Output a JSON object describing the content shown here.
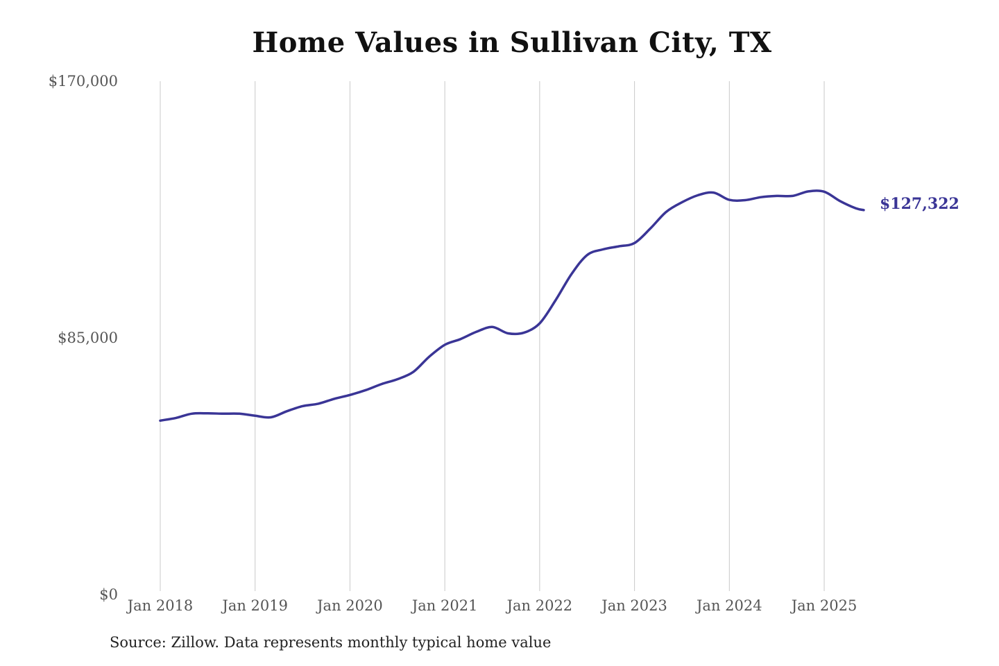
{
  "chart_data": {
    "type": "line",
    "title": "Home Values in Sullivan City, TX",
    "xlabel": "",
    "ylabel": "",
    "source_note": "Source: Zillow. Data represents monthly typical home value",
    "ylim": [
      0,
      170000
    ],
    "xlim": [
      "2018-01",
      "2025-06"
    ],
    "y_ticks": [
      {
        "value": 0,
        "label": "$0"
      },
      {
        "value": 85000,
        "label": "$85,000"
      },
      {
        "value": 170000,
        "label": "$170,000"
      }
    ],
    "x_ticks": [
      {
        "value": "2018-01",
        "label": "Jan 2018"
      },
      {
        "value": "2019-01",
        "label": "Jan 2019"
      },
      {
        "value": "2020-01",
        "label": "Jan 2020"
      },
      {
        "value": "2021-01",
        "label": "Jan 2021"
      },
      {
        "value": "2022-01",
        "label": "Jan 2022"
      },
      {
        "value": "2023-01",
        "label": "Jan 2023"
      },
      {
        "value": "2024-01",
        "label": "Jan 2024"
      },
      {
        "value": "2025-01",
        "label": "Jan 2025"
      }
    ],
    "grid": {
      "vertical": true,
      "horizontal": false
    },
    "colors": {
      "line": "#3a3596",
      "grid": "#c8c8c8"
    },
    "end_label": "$127,322",
    "series": [
      {
        "x": [
          "2018-01",
          "2018-03",
          "2018-05",
          "2018-07",
          "2018-09",
          "2018-11",
          "2019-01",
          "2019-03",
          "2019-05",
          "2019-07",
          "2019-09",
          "2019-11",
          "2020-01",
          "2020-03",
          "2020-05",
          "2020-07",
          "2020-09",
          "2020-11",
          "2021-01",
          "2021-03",
          "2021-05",
          "2021-07",
          "2021-09",
          "2021-11",
          "2022-01",
          "2022-03",
          "2022-05",
          "2022-07",
          "2022-09",
          "2022-11",
          "2023-01",
          "2023-03",
          "2023-05",
          "2023-07",
          "2023-09",
          "2023-11",
          "2024-01",
          "2024-03",
          "2024-05",
          "2024-07",
          "2024-09",
          "2024-11",
          "2025-01",
          "2025-03",
          "2025-05",
          "2025-06"
        ],
        "values": [
          57600,
          58500,
          59900,
          60000,
          59900,
          59900,
          59200,
          58700,
          60700,
          62400,
          63200,
          64800,
          66100,
          67700,
          69700,
          71300,
          73700,
          78700,
          82700,
          84600,
          87000,
          88600,
          86500,
          86700,
          89800,
          97400,
          106000,
          112400,
          114300,
          115300,
          116400,
          121200,
          126700,
          129900,
          132200,
          133100,
          130700,
          130600,
          131600,
          132000,
          132000,
          133500,
          133400,
          130300,
          127900,
          127322
        ]
      }
    ]
  }
}
